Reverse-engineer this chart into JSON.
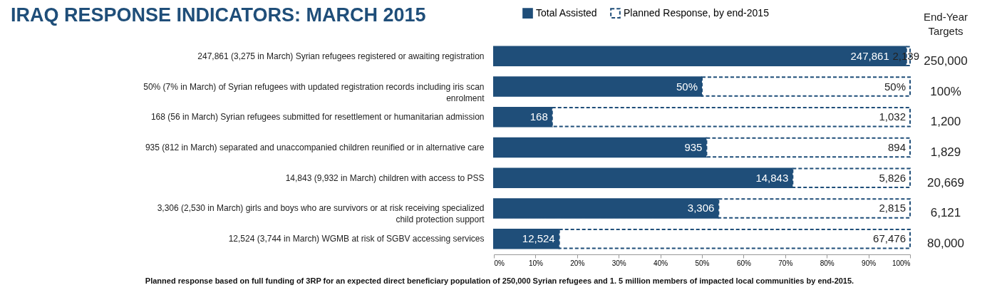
{
  "chart_data": {
    "type": "bar",
    "orientation": "horizontal",
    "stacked": true,
    "title": "IRAQ RESPONSE INDICATORS: MARCH 2015",
    "y2label": "End-Year Targets",
    "categories": [
      "247,861 (3,275 in March) Syrian refugees registered or awaiting registration",
      "50% (7% in March) of Syrian refugees with updated registration records including iris scan enrolment",
      "168 (56 in March) Syrian refugees submitted for resettlement or humanitarian admission",
      "935 (812 in March) separated and unaccompanied children reunified or in alternative care",
      "14,843 (9,932 in March) children with access to PSS",
      "3,306 (2,530 in March) girls and boys who are survivors or at risk receiving specialized child protection support",
      "12,524 (3,744 in March) WGMB at risk of SGBV accessing services"
    ],
    "series": [
      {
        "name": "Total Assisted",
        "color": "#1f4e79",
        "line_style": "solid",
        "values": [
          99.1,
          50,
          14,
          51.1,
          71.8,
          54.0,
          15.7
        ]
      },
      {
        "name": "Planned Response, by end-2015",
        "color": "#ffffff",
        "line_style": "dashed",
        "values": [
          0.9,
          50,
          86,
          48.9,
          28.2,
          46.0,
          84.3
        ]
      }
    ],
    "xlim": [
      0,
      100
    ],
    "xticks": [
      {
        "value": 0,
        "label": "0%"
      },
      {
        "value": 10,
        "label": "10%"
      },
      {
        "value": 20,
        "label": "20%"
      },
      {
        "value": 30,
        "label": "30%"
      },
      {
        "value": 40,
        "label": "40%"
      },
      {
        "value": 50,
        "label": "50%"
      },
      {
        "value": 60,
        "label": "60%"
      },
      {
        "value": 70,
        "label": "70%"
      },
      {
        "value": 80,
        "label": "80%"
      },
      {
        "value": 90,
        "label": "90%"
      },
      {
        "value": 100,
        "label": "100%"
      }
    ],
    "grid": false,
    "legend": "top",
    "annotations": [
      {
        "text": "247,861",
        "x": 99.1,
        "y": "247,861 (3,275 in March) Syrian refugees registered or awaiting registration"
      },
      {
        "text": "2,139",
        "x": 100,
        "y": "247,861 (3,275 in March) Syrian refugees registered or awaiting registration"
      },
      {
        "text": "250,000",
        "x": 100,
        "y": "247,861 (3,275 in March) Syrian refugees registered or awaiting registration"
      },
      {
        "text": "50%",
        "x": 50,
        "y": "50% (7% in March) of Syrian refugees with updated registration records including iris scan enrolment"
      },
      {
        "text": "50%",
        "x": 100,
        "y": "50% (7% in March) of Syrian refugees with updated registration records including iris scan enrolment"
      },
      {
        "text": "100%",
        "x": 100,
        "y": "50% (7% in March) of Syrian refugees with updated registration records including iris scan enrolment"
      },
      {
        "text": "168",
        "x": 14,
        "y": "168 (56 in March) Syrian refugees submitted for resettlement or humanitarian admission"
      },
      {
        "text": "1,032",
        "x": 100,
        "y": "168 (56 in March) Syrian refugees submitted for resettlement or humanitarian admission"
      },
      {
        "text": "1,200",
        "x": 100,
        "y": "168 (56 in March) Syrian refugees submitted for resettlement or humanitarian admission"
      },
      {
        "text": "935",
        "x": 51.1,
        "y": "935 (812 in March) separated and unaccompanied children reunified or in alternative care"
      },
      {
        "text": "894",
        "x": 100,
        "y": "935 (812 in March) separated and unaccompanied children reunified or in alternative care"
      },
      {
        "text": "1,829",
        "x": 100,
        "y": "935 (812 in March) separated and unaccompanied children reunified or in alternative care"
      },
      {
        "text": "14,843",
        "x": 71.8,
        "y": "14,843 (9,932 in March) children with access to PSS"
      },
      {
        "text": "5,826",
        "x": 100,
        "y": "14,843 (9,932 in March) children with access to PSS"
      },
      {
        "text": "20,669",
        "x": 100,
        "y": "14,843 (9,932 in March) children with access to PSS"
      },
      {
        "text": "3,306",
        "x": 54.0,
        "y": "3,306 (2,530 in March) girls and boys who are survivors or at risk receiving specialized child protection support"
      },
      {
        "text": "2,815",
        "x": 100,
        "y": "3,306 (2,530 in March) girls and boys who are survivors or at risk receiving specialized child protection support"
      },
      {
        "text": "6,121",
        "x": 100,
        "y": "3,306 (2,530 in March) girls and boys who are survivors or at risk receiving specialized child protection support"
      },
      {
        "text": "12,524",
        "x": 15.7,
        "y": "12,524 (3,744 in March) WGMB at risk of SGBV accessing services"
      },
      {
        "text": "67,476",
        "x": 100,
        "y": "12,524 (3,744 in March) WGMB at risk of SGBV accessing services"
      },
      {
        "text": "80,000",
        "x": 100,
        "y": "12,524 (3,744 in March) WGMB at risk of SGBV accessing services"
      },
      "Planned response based on full funding of 3RP for an expected direct beneficiary population of 250,000 Syrian refugees and 1. 5 million members of impacted local communities by end-2015."
    ]
  }
}
